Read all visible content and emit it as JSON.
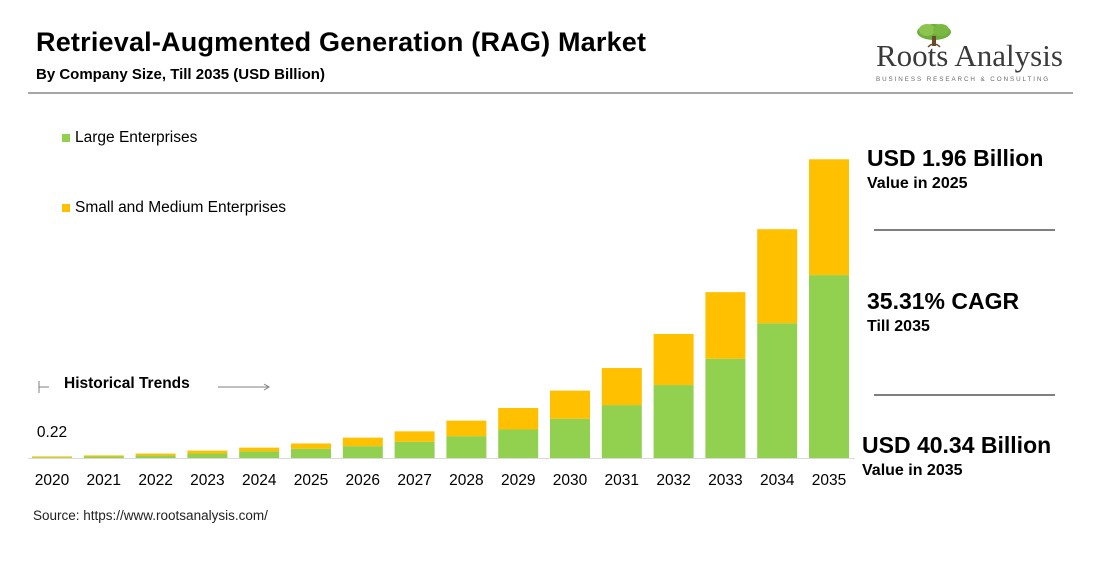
{
  "header": {
    "title": "Retrieval-Augmented Generation (RAG) Market",
    "subtitle": "By Company Size, Till 2035 (USD Billion)"
  },
  "logo": {
    "name": "Roots Analysis",
    "tagline": "BUSINESS RESEARCH & CONSULTING",
    "icon": "tree-icon"
  },
  "legend": [
    {
      "label": "Large Enterprises",
      "color": "#92d050"
    },
    {
      "label": "Small and Medium Enterprises",
      "color": "#ffc000"
    }
  ],
  "historical": {
    "label": "Historical Trends"
  },
  "callouts": {
    "value_2025": "USD 1.96 Billion",
    "value_2025_sub": "Value in 2025",
    "cagr": "35.31% CAGR",
    "cagr_sub": "Till 2035",
    "value_2035": "USD 40.34 Billion",
    "value_2035_sub": "Value in 2035"
  },
  "source": "Source: https://www.rootsanalysis.com/",
  "chart_data": {
    "type": "bar",
    "stacked": true,
    "title": "Retrieval-Augmented Generation (RAG) Market",
    "xlabel": "",
    "ylabel": "USD Billion",
    "ylim": [
      0,
      42
    ],
    "categories": [
      "2020",
      "2021",
      "2022",
      "2023",
      "2024",
      "2025",
      "2026",
      "2027",
      "2028",
      "2029",
      "2030",
      "2031",
      "2032",
      "2033",
      "2034",
      "2035"
    ],
    "series": [
      {
        "name": "Large Enterprises",
        "color": "#92d050",
        "values": [
          0.1,
          0.2,
          0.35,
          0.6,
          0.9,
          1.25,
          1.6,
          2.2,
          2.95,
          3.85,
          5.3,
          7.15,
          9.85,
          13.4,
          18.2,
          24.7
        ]
      },
      {
        "name": "Small and Medium Enterprises",
        "color": "#ffc000",
        "values": [
          0.12,
          0.15,
          0.25,
          0.4,
          0.5,
          0.71,
          1.15,
          1.4,
          2.1,
          2.9,
          3.8,
          5.0,
          6.9,
          9.0,
          12.7,
          15.64
        ]
      }
    ],
    "annotations": [
      {
        "category": "2020",
        "label": "0.22"
      }
    ]
  }
}
